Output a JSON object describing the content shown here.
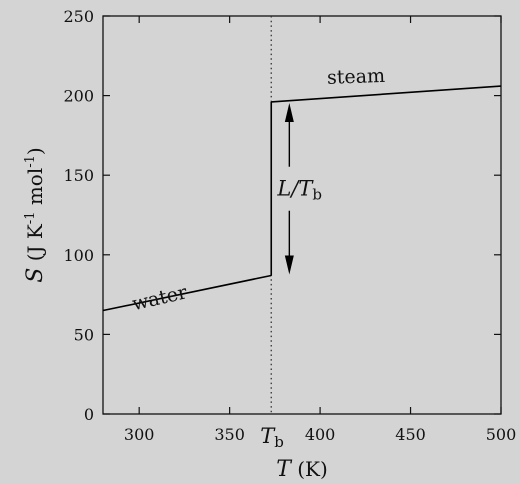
{
  "chart_data": {
    "type": "line",
    "xlim": [
      280,
      500
    ],
    "ylim": [
      0,
      250
    ],
    "x_ticks": [
      300,
      350,
      400,
      450,
      500
    ],
    "y_ticks": [
      0,
      50,
      100,
      150,
      200,
      250
    ],
    "x_tick_labels": [
      "300",
      "350",
      "400",
      "450",
      "500"
    ],
    "y_tick_labels": [
      "0",
      "50",
      "100",
      "150",
      "200",
      "250"
    ],
    "xlabel": {
      "var": "T",
      "unit": "(K)"
    },
    "ylabel": {
      "var": "S",
      "unit_open": "(J K",
      "unit_exp1": "-1",
      "unit_mid": " mol",
      "unit_exp2": "-1",
      "unit_close": ")"
    },
    "series": [
      {
        "name": "water",
        "x": [
          280,
          373
        ],
        "y": [
          65,
          87
        ]
      },
      {
        "name": "steam",
        "x": [
          373,
          500
        ],
        "y": [
          196,
          206
        ]
      }
    ],
    "transition": {
      "x": 373,
      "y_low": 87,
      "y_high": 196
    },
    "vline": {
      "x": 373,
      "label": "T",
      "label_sub": "b"
    },
    "arrow_annotation": {
      "x": 383,
      "y_top": 196,
      "y_bottom": 87,
      "label": "L/T",
      "label_sub": "b"
    },
    "labels": [
      {
        "text": "water",
        "x": 312,
        "y": 69
      },
      {
        "text": "steam",
        "x": 420,
        "y": 208
      }
    ],
    "grid": false
  }
}
